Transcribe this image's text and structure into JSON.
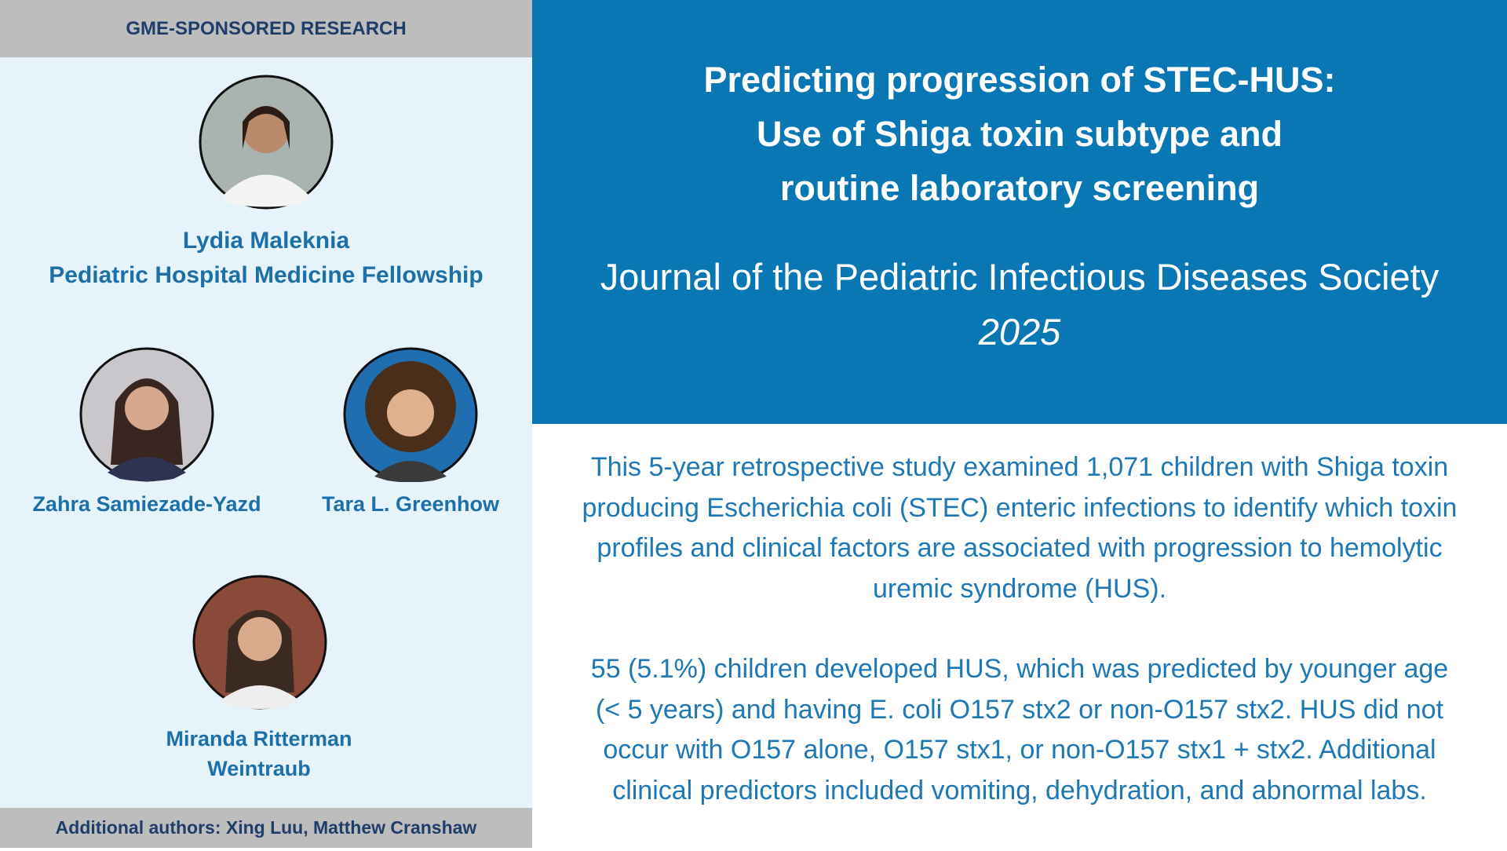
{
  "left_panel": {
    "header": "GME-SPONSORED RESEARCH",
    "lead_author": {
      "name": "Lydia Maleknia",
      "program": "Pediatric Hospital Medicine Fellowship"
    },
    "authors": [
      "Zahra Samiezade-Yazd",
      "Tara L. Greenhow",
      [
        "Miranda Ritterman",
        "Weintraub"
      ]
    ],
    "footer": "Additional authors: Xing Luu, Matthew Cranshaw"
  },
  "title": [
    "Predicting progression of STEC-HUS:",
    "Use of Shiga toxin subtype and",
    "routine laboratory screening"
  ],
  "journal": "Journal of the Pediatric Infectious Diseases Society",
  "year": "2025",
  "paragraphs": [
    [
      "This 5-year retrospective study examined 1,071 children with Shiga toxin",
      "producing Escherichia coli (STEC) enteric infections to identify which toxin",
      "profiles and clinical factors are associated with progression to hemolytic",
      "uremic syndrome (HUS)."
    ],
    [
      "55 (5.1%) children developed HUS, which was predicted by younger age",
      "(< 5 years) and having E. coli O157 stx2 or non-O157 stx2. HUS did not",
      "occur with O157 alone, O157 stx1, or non-O157 stx1 + stx2. Additional",
      "clinical predictors included vomiting, dehydration, and abnormal labs."
    ]
  ]
}
